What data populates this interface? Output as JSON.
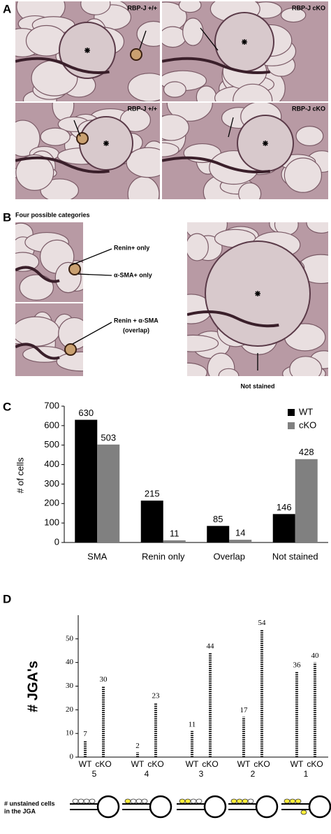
{
  "panel_a": {
    "label": "A",
    "images": [
      {
        "label": "RBP-J +/+"
      },
      {
        "label": "RBP-J cKO"
      },
      {
        "label": "RBP-J +/+"
      },
      {
        "label": "RBP-J cKO"
      }
    ]
  },
  "panel_b": {
    "label": "B",
    "title": "Four possible categories",
    "annotations": [
      "Renin+ only",
      "α-SMA+ only",
      "Renin + α-SMA",
      "(overlap)"
    ],
    "caption": "Not stained"
  },
  "chart_data": [
    {
      "type": "bar",
      "panel_label": "C",
      "ylabel": "# of cells",
      "categories": [
        "SMA",
        "Renin only",
        "Overlap",
        "Not stained"
      ],
      "series": [
        {
          "name": "WT",
          "color": "#000000",
          "values": [
            630,
            215,
            85,
            146
          ]
        },
        {
          "name": "cKO",
          "color": "#808080",
          "values": [
            503,
            11,
            14,
            428
          ]
        }
      ],
      "ylim": [
        0,
        700
      ],
      "yticks": [
        0,
        100,
        200,
        300,
        400,
        500,
        600,
        700
      ],
      "legend": "top-right",
      "value_labels_shown": true
    },
    {
      "type": "bar",
      "panel_label": "D",
      "ylabel": "# JGA's",
      "dashed": true,
      "categories": [
        "5",
        "4",
        "3",
        "2",
        "1"
      ],
      "series": [
        {
          "name": "WT",
          "color": "#000000",
          "values": [
            7,
            2,
            11,
            17,
            36
          ]
        },
        {
          "name": "cKO",
          "color": "#000000",
          "values": [
            30,
            23,
            44,
            54,
            40
          ]
        }
      ],
      "ylim": [
        0,
        60
      ],
      "yticks": [
        0,
        10,
        20,
        30,
        40,
        50
      ],
      "footnote": [
        "# unstained cells",
        "in the JGA"
      ],
      "value_labels_shown": true
    }
  ]
}
